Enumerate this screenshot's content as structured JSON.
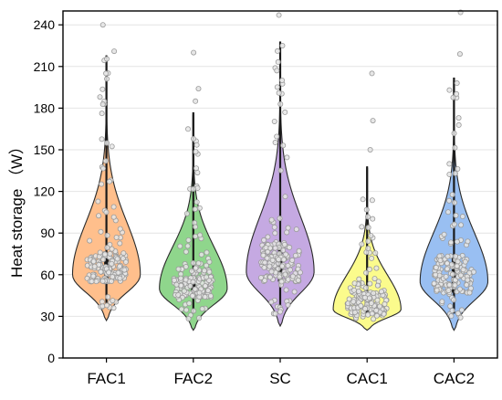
{
  "chart_data": {
    "type": "violin",
    "title": "",
    "xlabel": "",
    "ylabel": "Heat storage （W）",
    "ylim": [
      0,
      250
    ],
    "yticks": [
      0,
      30,
      60,
      90,
      120,
      150,
      180,
      210,
      240
    ],
    "grid": true,
    "categories": [
      "FAC1",
      "FAC2",
      "SC",
      "CAC1",
      "CAC2"
    ],
    "series": [
      {
        "category": "FAC1",
        "min": 27,
        "max": 218,
        "mode": 60,
        "q1": 55,
        "q3": 75,
        "color": "#ffbf8c",
        "outliers": [
          240,
          221,
          205,
          188
        ]
      },
      {
        "category": "FAC2",
        "min": 20,
        "max": 177,
        "mode": 50,
        "q1": 44,
        "q3": 64,
        "color": "#8fd68c",
        "outliers": [
          220,
          194,
          185
        ]
      },
      {
        "category": "SC",
        "min": 23,
        "max": 228,
        "mode": 62,
        "q1": 55,
        "q3": 82,
        "color": "#c5a9e2",
        "outliers": [
          247,
          225,
          207,
          200
        ]
      },
      {
        "category": "CAC1",
        "min": 20,
        "max": 138,
        "mode": 35,
        "q1": 31,
        "q3": 48,
        "color": "#fbfb8c",
        "outliers": [
          205,
          171,
          150
        ]
      },
      {
        "category": "CAC2",
        "min": 20,
        "max": 202,
        "mode": 55,
        "q1": 47,
        "q3": 72,
        "color": "#99bff2",
        "outliers": [
          249,
          219,
          198
        ]
      }
    ]
  }
}
